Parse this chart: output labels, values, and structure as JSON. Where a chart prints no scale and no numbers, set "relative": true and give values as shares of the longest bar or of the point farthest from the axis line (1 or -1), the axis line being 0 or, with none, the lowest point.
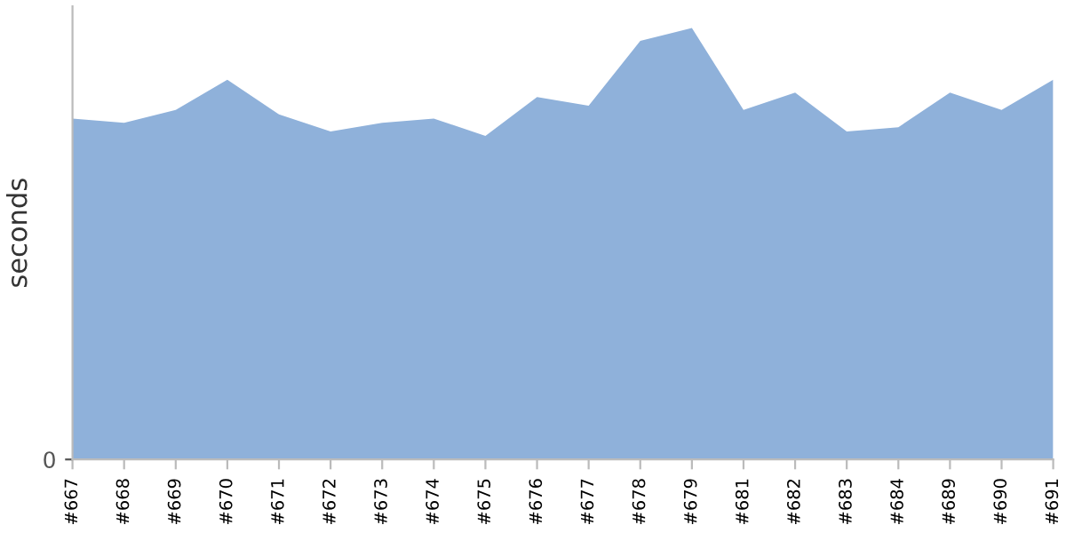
{
  "chart_data": {
    "type": "area",
    "relative": true,
    "ylabel": "seconds",
    "annotations": [
      "0"
    ],
    "color": "#8fb1da",
    "categories": [
      "#667",
      "#668",
      "#669",
      "#670",
      "#671",
      "#672",
      "#673",
      "#674",
      "#675",
      "#676",
      "#677",
      "#678",
      "#679",
      "#681",
      "#682",
      "#683",
      "#684",
      "#689",
      "#690",
      "#691"
    ],
    "values": [
      0.79,
      0.78,
      0.81,
      0.88,
      0.8,
      0.76,
      0.78,
      0.79,
      0.75,
      0.84,
      0.82,
      0.97,
      1,
      0.81,
      0.85,
      0.76,
      0.77,
      0.85,
      0.81,
      0.88
    ],
    "grid": false,
    "legend": false
  }
}
